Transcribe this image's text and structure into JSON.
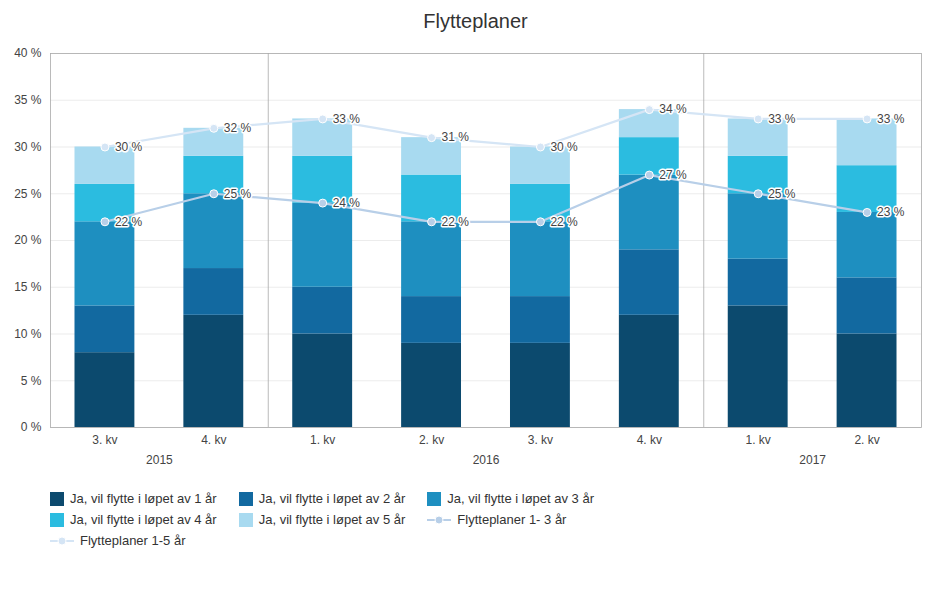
{
  "chart_data": {
    "type": "bar",
    "title": "Flytteplaner",
    "stacked": true,
    "grid": true,
    "legend": "bottom",
    "categories": [
      "3. kv",
      "4. kv",
      "1. kv",
      "2. kv",
      "3. kv",
      "4. kv",
      "1. kv",
      "2. kv"
    ],
    "x_groups": [
      {
        "label": "2015",
        "count": 2
      },
      {
        "label": "2016",
        "count": 4
      },
      {
        "label": "2017",
        "count": 2
      }
    ],
    "series": [
      {
        "name": "Ja, vil flytte i løpet av 1 år",
        "type": "bar",
        "color": "#0c4a6e",
        "values": [
          8,
          12,
          10,
          9,
          9,
          12,
          13,
          10
        ]
      },
      {
        "name": "Ja, vil flytte i løpet av 2 år",
        "type": "bar",
        "color": "#1269a0",
        "values": [
          5,
          5,
          5,
          5,
          5,
          7,
          5,
          6
        ]
      },
      {
        "name": "Ja, vil flytte i løpet av 3 år",
        "type": "bar",
        "color": "#1e8fc0",
        "values": [
          9,
          8,
          9,
          8,
          8,
          8,
          7,
          7
        ]
      },
      {
        "name": "Ja, vil flytte i løpet av 4 år",
        "type": "bar",
        "color": "#2bbce0",
        "values": [
          4,
          4,
          5,
          5,
          4,
          4,
          4,
          5
        ]
      },
      {
        "name": "Ja, vil flytte i løpet av 5 år",
        "type": "bar",
        "color": "#a8daf0",
        "values": [
          4,
          3,
          4,
          4,
          4,
          3,
          4,
          5
        ]
      },
      {
        "name": "Flytteplaner 1- 3 år",
        "type": "line",
        "color": "#b8cfe8",
        "marker": "circle",
        "data_labels": true,
        "values": [
          22,
          25,
          24,
          22,
          22,
          27,
          25,
          23
        ],
        "value_labels": [
          "22 %",
          "25 %",
          "24 %",
          "22 %",
          "22 %",
          "27 %",
          "25 %",
          "23 %"
        ]
      },
      {
        "name": "Flytteplaner 1-5 år",
        "type": "line",
        "color": "#d5e5f5",
        "marker": "circle",
        "data_labels": true,
        "values": [
          30,
          32,
          33,
          31,
          30,
          34,
          33,
          33
        ],
        "value_labels": [
          "30 %",
          "32 %",
          "33 %",
          "31 %",
          "30 %",
          "34 %",
          "33 %",
          "33 %"
        ]
      }
    ],
    "ylim": [
      0,
      40
    ],
    "yticks": [
      {
        "value": 0,
        "label": "0 %"
      },
      {
        "value": 5,
        "label": "5 %"
      },
      {
        "value": 10,
        "label": "10 %"
      },
      {
        "value": 15,
        "label": "15 %"
      },
      {
        "value": 20,
        "label": "20 %"
      },
      {
        "value": 25,
        "label": "25 %"
      },
      {
        "value": 30,
        "label": "30 %"
      },
      {
        "value": 35,
        "label": "35 %"
      },
      {
        "value": 40,
        "label": "40 %"
      }
    ]
  }
}
